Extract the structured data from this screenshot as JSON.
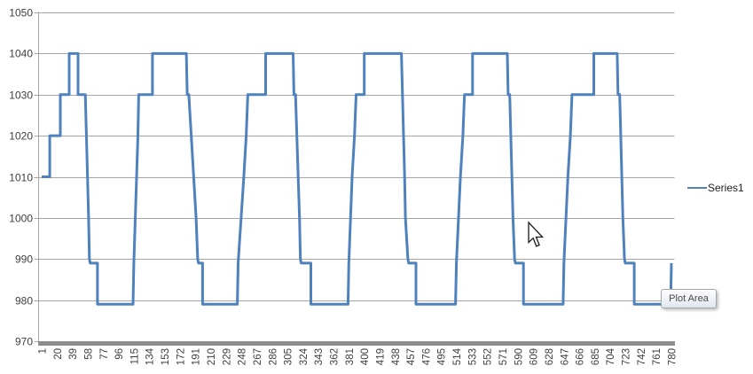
{
  "chart_data": {
    "type": "line",
    "title": "",
    "xlabel": "",
    "ylabel": "",
    "ylim": [
      970,
      1050
    ],
    "y_ticks": [
      970,
      980,
      990,
      1000,
      1010,
      1020,
      1030,
      1040,
      1050
    ],
    "x_tick_labels": [
      1,
      20,
      39,
      58,
      77,
      96,
      115,
      134,
      153,
      172,
      191,
      210,
      229,
      248,
      267,
      286,
      305,
      324,
      343,
      362,
      381,
      400,
      419,
      438,
      457,
      476,
      495,
      514,
      533,
      552,
      571,
      590,
      609,
      628,
      647,
      666,
      685,
      704,
      723,
      742,
      761,
      780
    ],
    "x_range": [
      1,
      784
    ],
    "grid": "horizontal-major",
    "legend_position": "right",
    "series": [
      {
        "name": "Series1",
        "color": "#4F81BD",
        "points": [
          [
            1,
            1010
          ],
          [
            11,
            1010
          ],
          [
            11,
            1020
          ],
          [
            24,
            1020
          ],
          [
            24,
            1030
          ],
          [
            35,
            1030
          ],
          [
            35,
            1040
          ],
          [
            46,
            1040
          ],
          [
            46,
            1030
          ],
          [
            55,
            1030
          ],
          [
            59,
            1000
          ],
          [
            60,
            990
          ],
          [
            61,
            989
          ],
          [
            70,
            989
          ],
          [
            70,
            979
          ],
          [
            114,
            979
          ],
          [
            115,
            989
          ],
          [
            120,
            1020
          ],
          [
            121,
            1030
          ],
          [
            138,
            1030
          ],
          [
            138,
            1040
          ],
          [
            180,
            1040
          ],
          [
            181,
            1030
          ],
          [
            183,
            1030
          ],
          [
            192,
            1000
          ],
          [
            194,
            990
          ],
          [
            195,
            989
          ],
          [
            200,
            989
          ],
          [
            200,
            979
          ],
          [
            243,
            979
          ],
          [
            244,
            989
          ],
          [
            251,
            1010
          ],
          [
            254,
            1020
          ],
          [
            256,
            1030
          ],
          [
            278,
            1030
          ],
          [
            278,
            1040
          ],
          [
            312,
            1040
          ],
          [
            313,
            1030
          ],
          [
            315,
            1030
          ],
          [
            320,
            1000
          ],
          [
            321,
            990
          ],
          [
            322,
            989
          ],
          [
            334,
            989
          ],
          [
            334,
            979
          ],
          [
            380,
            979
          ],
          [
            381,
            989
          ],
          [
            385,
            1010
          ],
          [
            388,
            1020
          ],
          [
            390,
            1030
          ],
          [
            400,
            1030
          ],
          [
            400,
            1040
          ],
          [
            446,
            1040
          ],
          [
            450,
            1010
          ],
          [
            451,
            1000
          ],
          [
            454,
            990
          ],
          [
            455,
            989
          ],
          [
            464,
            989
          ],
          [
            464,
            979
          ],
          [
            513,
            979
          ],
          [
            514,
            989
          ],
          [
            519,
            1010
          ],
          [
            522,
            1020
          ],
          [
            524,
            1030
          ],
          [
            534,
            1030
          ],
          [
            534,
            1040
          ],
          [
            577,
            1040
          ],
          [
            578,
            1030
          ],
          [
            580,
            1030
          ],
          [
            584,
            1000
          ],
          [
            586,
            990
          ],
          [
            587,
            989
          ],
          [
            597,
            989
          ],
          [
            597,
            979
          ],
          [
            646,
            979
          ],
          [
            647,
            989
          ],
          [
            652,
            1010
          ],
          [
            655,
            1020
          ],
          [
            657,
            1030
          ],
          [
            684,
            1030
          ],
          [
            684,
            1040
          ],
          [
            713,
            1040
          ],
          [
            714,
            1030
          ],
          [
            716,
            1030
          ],
          [
            720,
            1000
          ],
          [
            722,
            990
          ],
          [
            723,
            989
          ],
          [
            734,
            989
          ],
          [
            734,
            979
          ],
          [
            779,
            979
          ],
          [
            780,
            989
          ]
        ]
      }
    ]
  },
  "ui": {
    "tooltip_label": "Plot Area",
    "colors": {
      "series": "#4F81BD",
      "gridline": "#a6a6a6",
      "axis_line": "#a6a6a6",
      "axis_bar": "#8c8c8c",
      "tick_text": "#3f3f3f",
      "legend_text": "#1f1f1f",
      "tooltip_border": "#a6a6a6",
      "tooltip_text": "#4a4a4a"
    }
  }
}
